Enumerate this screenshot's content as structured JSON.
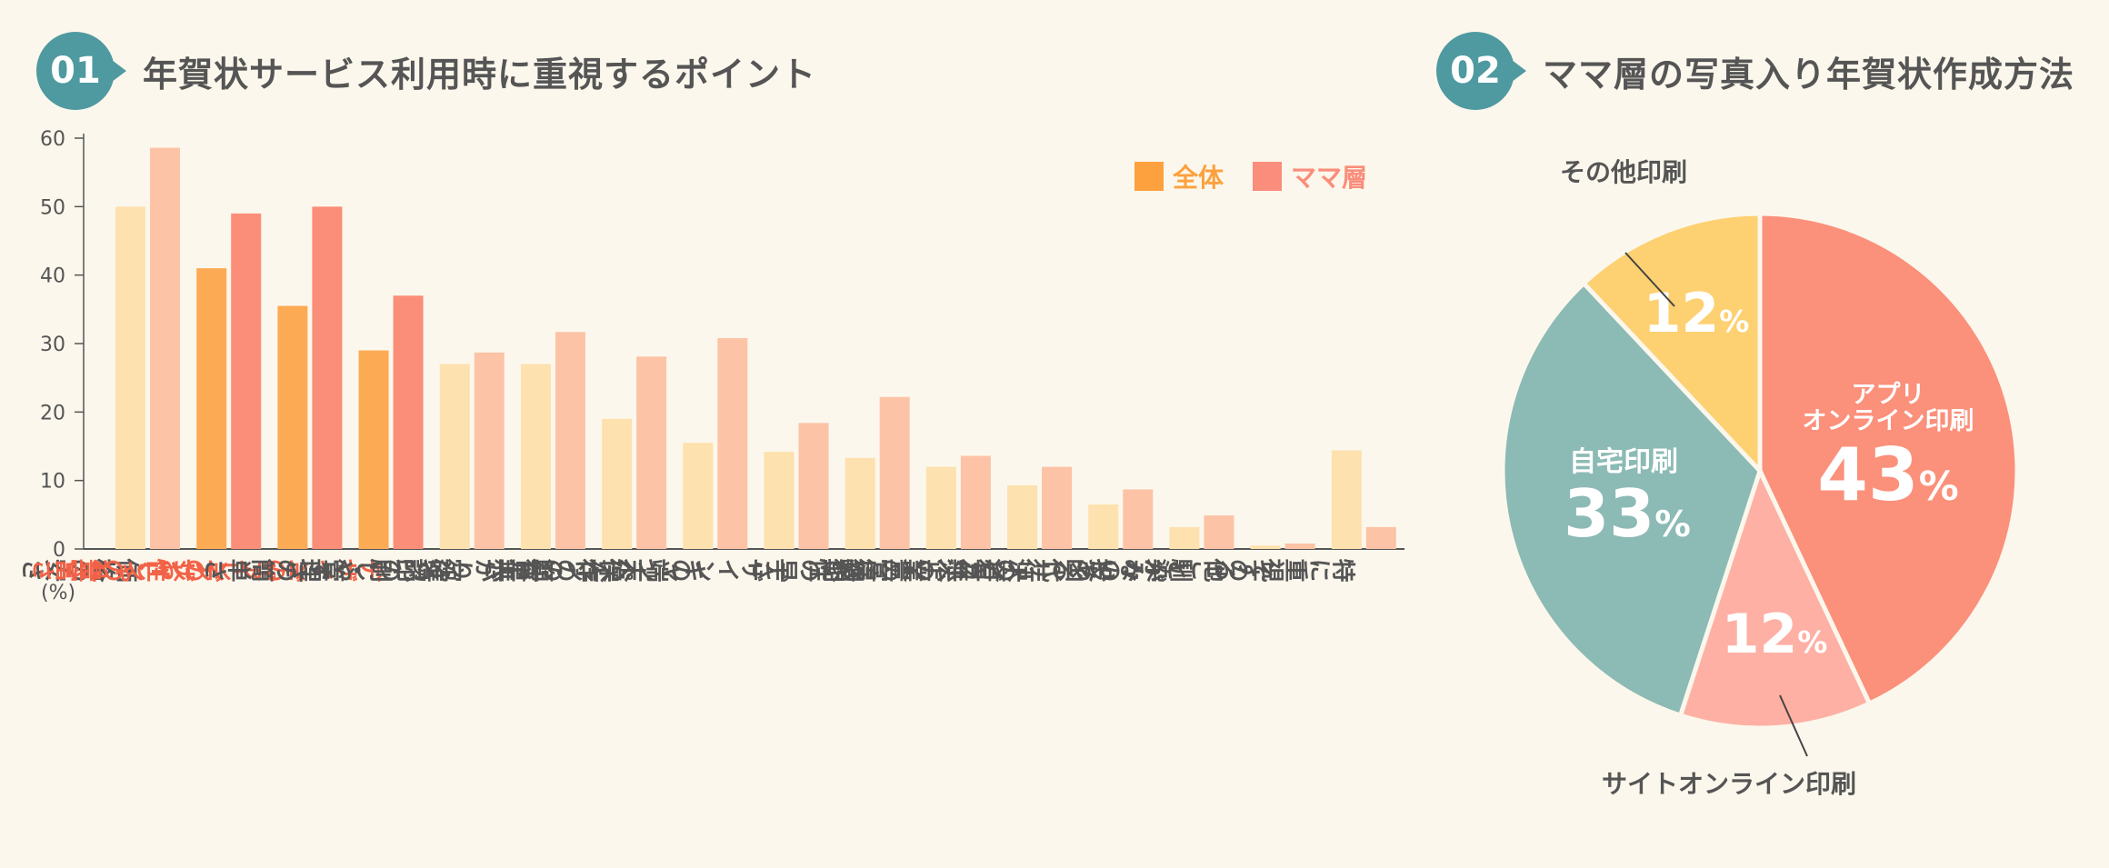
{
  "section1": {
    "number": "01",
    "title": "年賀状サービス利用時に重視するポイント"
  },
  "section2": {
    "number": "02",
    "title": "ママ層の写真入り年賀状作成方法"
  },
  "colors": {
    "bg": "#fcf7ec",
    "teal": "#4f9aa0",
    "all_normal": "#fde1ae",
    "mama_normal": "#fdc3a6",
    "all_highlight": "#fdaa55",
    "mama_highlight": "#fb8e79",
    "highlight_text": "#f26247",
    "legend_all": "#fca13e",
    "legend_mama": "#fa8d7b"
  },
  "chart_data": [
    {
      "type": "bar",
      "title": "年賀状サービス利用時に重視するポイント",
      "ylabel": "(%)",
      "ylim": [
        0,
        60
      ],
      "yticks": [
        "0",
        "10",
        "20",
        "30",
        "40",
        "50",
        "60"
      ],
      "legend": {
        "position": "top-right",
        "entries": [
          "全体",
          "ママ層"
        ]
      },
      "categories": [
        "価格の安さ",
        "デザインの豊富さ",
        "デザインのおしゃれさ",
        "デザインのアレンジ性",
        "宛名印刷・管理の簡単さ",
        "仕上がり確認のしやすさ",
        "操作の簡単さ",
        "キャンペーンの有無",
        "デザインの端末保存",
        "納期の早さ",
        "企業の信頼性",
        "決済方法の豊富さ",
        "投函代行の有無",
        "馴染みのあるサービス",
        "その他",
        "特に重視することがない"
      ],
      "highlighted": [
        false,
        true,
        true,
        true,
        false,
        false,
        false,
        false,
        false,
        false,
        false,
        false,
        false,
        false,
        false,
        false
      ],
      "series": [
        {
          "name": "全体",
          "values": [
            50,
            41,
            35.5,
            29,
            27,
            27,
            19,
            15.5,
            14.2,
            13.3,
            12,
            9.3,
            6.5,
            3.2,
            0.5,
            14.4
          ]
        },
        {
          "name": "ママ層",
          "values": [
            58.6,
            49,
            50,
            37,
            28.7,
            31.7,
            28.1,
            30.8,
            18.4,
            22.2,
            13.6,
            12,
            8.7,
            4.9,
            0.8,
            3.2
          ]
        }
      ]
    },
    {
      "type": "pie",
      "title": "ママ層の写真入り年賀状作成方法",
      "slices": [
        {
          "label": "アプリ\nオンライン印刷",
          "value": 43,
          "display": "43",
          "color": "#fb907b"
        },
        {
          "label": "サイトオンライン印刷",
          "value": 12,
          "display": "12",
          "color": "#feb0a4"
        },
        {
          "label": "自宅印刷",
          "value": 33,
          "display": "33",
          "color": "#8cbab5"
        },
        {
          "label": "その他印刷",
          "value": 12,
          "display": "12",
          "color": "#fdd071"
        }
      ],
      "unit": "%"
    }
  ]
}
